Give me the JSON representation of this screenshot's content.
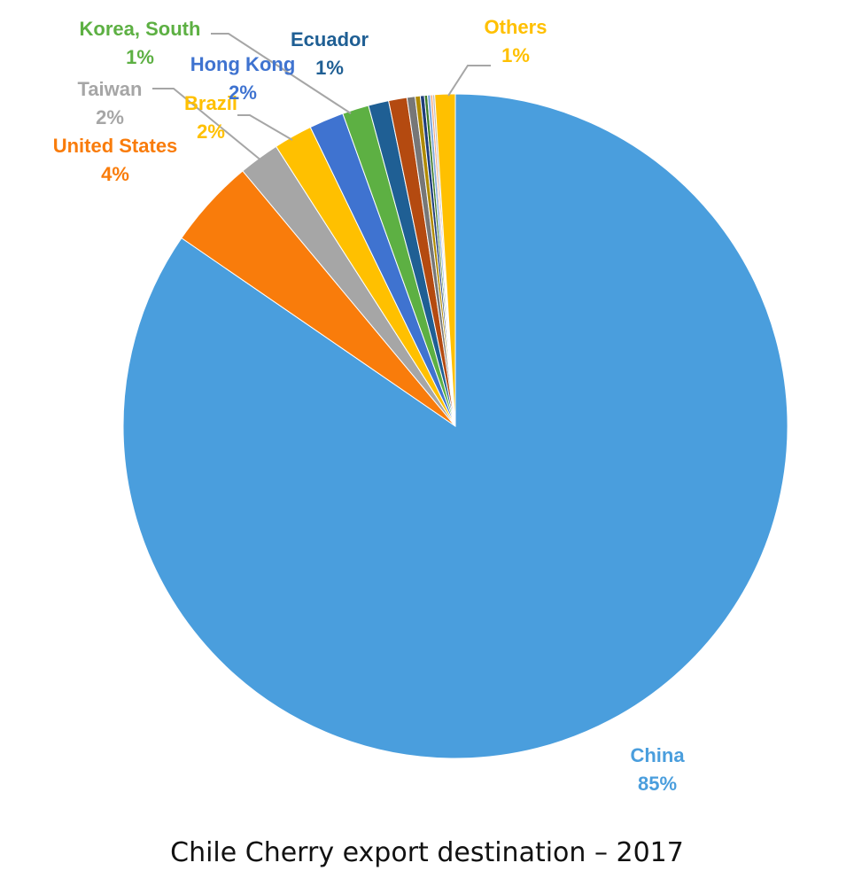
{
  "chart_data": {
    "type": "pie",
    "title": "Chile Cherry export destination – 2017",
    "slices": [
      {
        "name": "China",
        "label": "China",
        "percent_label": "85%",
        "value": 85.3,
        "color": "#4a9edd",
        "labeled": true
      },
      {
        "name": "United States",
        "label": "United States",
        "percent_label": "4%",
        "value": 4.4,
        "color": "#f97c0b",
        "labeled": true
      },
      {
        "name": "Taiwan",
        "label": "Taiwan",
        "percent_label": "2%",
        "value": 2.0,
        "color": "#a6a6a6",
        "labeled": true
      },
      {
        "name": "Brazil",
        "label": "Brazil",
        "percent_label": "2%",
        "value": 1.9,
        "color": "#ffc000",
        "labeled": true
      },
      {
        "name": "Hong Kong",
        "label": "Hong Kong",
        "percent_label": "2%",
        "value": 1.7,
        "color": "#3f73d0",
        "labeled": true
      },
      {
        "name": "Korea, South",
        "label": "Korea, South",
        "percent_label": "1%",
        "value": 1.3,
        "color": "#5db043",
        "labeled": true
      },
      {
        "name": "Ecuador",
        "label": "Ecuador",
        "percent_label": "1%",
        "value": 1.0,
        "color": "#1f5f94",
        "labeled": true
      },
      {
        "value": 0.9,
        "color": "#b44a10",
        "labeled": false
      },
      {
        "value": 0.4,
        "color": "#777777",
        "labeled": false
      },
      {
        "value": 0.25,
        "color": "#b08a00",
        "labeled": false
      },
      {
        "value": 0.2,
        "color": "#1f3d7a",
        "labeled": false
      },
      {
        "value": 0.15,
        "color": "#3c7a2a",
        "labeled": false
      },
      {
        "value": 0.15,
        "color": "#7fa8dd",
        "labeled": false
      },
      {
        "value": 0.1,
        "color": "#f0a070",
        "labeled": false
      },
      {
        "value": 0.1,
        "color": "#bbbbbb",
        "labeled": false
      },
      {
        "name": "Others",
        "label": "Others",
        "percent_label": "1%",
        "value": 1.0,
        "color": "#ffc000",
        "labeled": true
      }
    ],
    "label_colors": {
      "China": "#4a9edd",
      "United States": "#f97c0b",
      "Taiwan": "#a6a6a6",
      "Brazil": "#ffc000",
      "Hong Kong": "#3f73d0",
      "Korea, South": "#5db043",
      "Ecuador": "#1f5f94",
      "Others": "#ffc000"
    },
    "start_angle_deg": 0,
    "direction": "clockwise",
    "legend": "none"
  }
}
